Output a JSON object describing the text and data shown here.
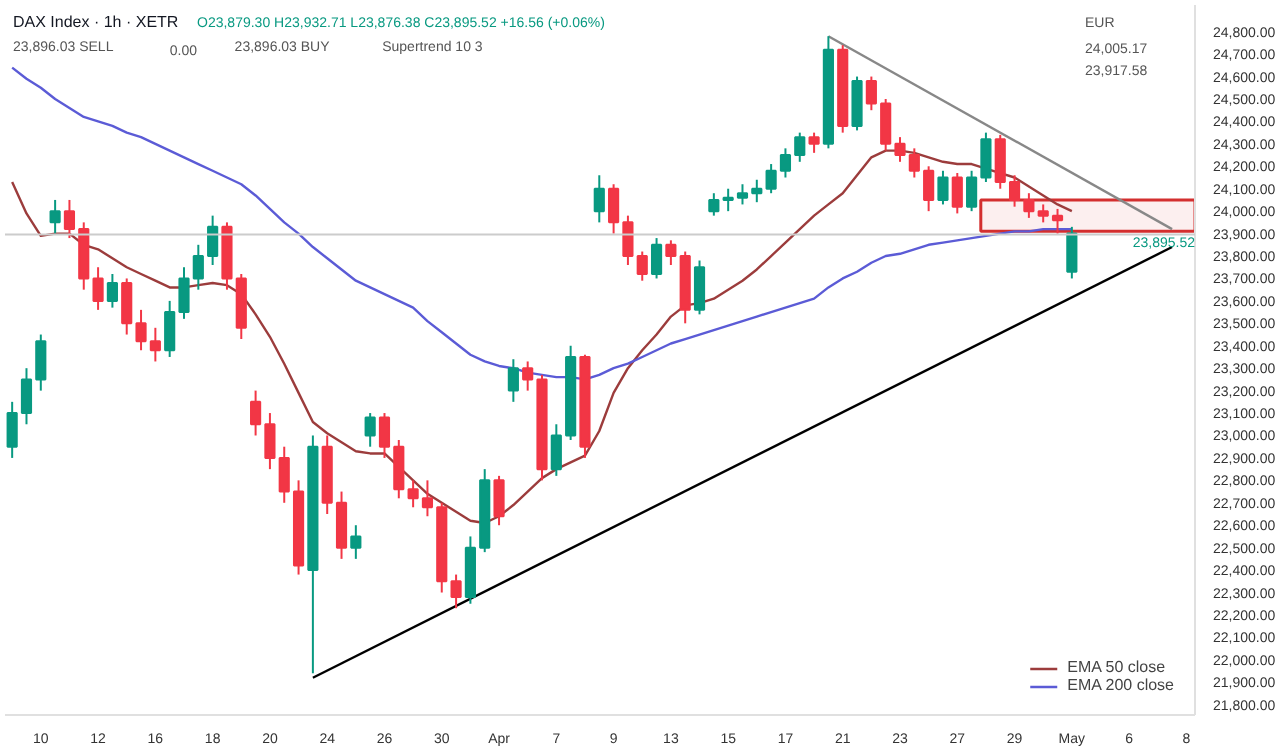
{
  "chart_data": {
    "type": "candlestick",
    "title": "DAX Index · 1h · XETR",
    "subtitle": "O23,879.30 H23,932.71 L23,876.38 C23,895.52 +16.56 (+0.06%)",
    "annotations": [
      "23,896.03 SELL",
      "0.00",
      "23,896.03 BUY",
      "Supertrend 10 3",
      "EUR",
      "24,005.17",
      "23,917.58"
    ],
    "categories": [
      null,
      null,
      "10",
      null,
      null,
      null,
      "12",
      null,
      null,
      null,
      "16",
      null,
      null,
      null,
      "18",
      null,
      null,
      null,
      "20",
      null,
      null,
      null,
      "24",
      null,
      null,
      null,
      "26",
      null,
      null,
      null,
      "30",
      null,
      null,
      null,
      "Apr",
      null,
      null,
      null,
      "7",
      null,
      null,
      null,
      "9",
      null,
      null,
      null,
      "13",
      null,
      null,
      null,
      "15",
      null,
      null,
      null,
      "17",
      null,
      null,
      null,
      "21",
      null,
      null,
      null,
      "23",
      null,
      null,
      null,
      "27",
      null,
      null,
      null,
      "29",
      null,
      null,
      null,
      "May",
      null,
      null,
      null,
      "6",
      null,
      null,
      null,
      "8",
      null,
      null
    ],
    "ohlc": [
      [
        22950,
        23150,
        22900,
        23100
      ],
      [
        23100,
        23300,
        23050,
        23250
      ],
      [
        23250,
        23450,
        23200,
        23420
      ],
      [
        23950,
        24050,
        23900,
        24000
      ],
      [
        24000,
        24050,
        23880,
        23920
      ],
      [
        23920,
        23950,
        23650,
        23700
      ],
      [
        23700,
        23750,
        23560,
        23600
      ],
      [
        23600,
        23720,
        23570,
        23680
      ],
      [
        23680,
        23700,
        23450,
        23500
      ],
      [
        23500,
        23560,
        23380,
        23420
      ],
      [
        23420,
        23480,
        23330,
        23380
      ],
      [
        23380,
        23600,
        23350,
        23550
      ],
      [
        23550,
        23750,
        23520,
        23700
      ],
      [
        23700,
        23850,
        23650,
        23800
      ],
      [
        23800,
        23980,
        23760,
        23930
      ],
      [
        23930,
        23950,
        23650,
        23700
      ],
      [
        23700,
        23720,
        23430,
        23480
      ],
      [
        23150,
        23200,
        23000,
        23050
      ],
      [
        23050,
        23100,
        22850,
        22900
      ],
      [
        22900,
        22950,
        22700,
        22750
      ],
      [
        22750,
        22800,
        22380,
        22420
      ],
      [
        22400,
        23000,
        21940,
        22950
      ],
      [
        22950,
        23000,
        22650,
        22700
      ],
      [
        22700,
        22750,
        22450,
        22500
      ],
      [
        22500,
        22600,
        22450,
        22550
      ],
      [
        23000,
        23100,
        22950,
        23080
      ],
      [
        23080,
        23100,
        22900,
        22950
      ],
      [
        22950,
        22980,
        22720,
        22760
      ],
      [
        22760,
        22800,
        22680,
        22720
      ],
      [
        22720,
        22800,
        22640,
        22680
      ],
      [
        22680,
        22700,
        22300,
        22350
      ],
      [
        22350,
        22380,
        22230,
        22280
      ],
      [
        22280,
        22550,
        22250,
        22500
      ],
      [
        22500,
        22850,
        22480,
        22800
      ],
      [
        22800,
        22820,
        22600,
        22640
      ],
      [
        23200,
        23340,
        23150,
        23300
      ],
      [
        23300,
        23330,
        23200,
        23250
      ],
      [
        23250,
        23270,
        22800,
        22850
      ],
      [
        22850,
        23050,
        22820,
        23000
      ],
      [
        23000,
        23400,
        22980,
        23350
      ],
      [
        23350,
        23360,
        22900,
        22950
      ],
      [
        24000,
        24160,
        23950,
        24100
      ],
      [
        24100,
        24120,
        23900,
        23950
      ],
      [
        23950,
        23980,
        23760,
        23800
      ],
      [
        23800,
        23820,
        23690,
        23720
      ],
      [
        23720,
        23880,
        23700,
        23850
      ],
      [
        23850,
        23870,
        23760,
        23800
      ],
      [
        23800,
        23820,
        23500,
        23560
      ],
      [
        23560,
        23780,
        23540,
        23750
      ],
      [
        24000,
        24080,
        23980,
        24050
      ],
      [
        24050,
        24100,
        24000,
        24060
      ],
      [
        24060,
        24120,
        24030,
        24080
      ],
      [
        24080,
        24140,
        24040,
        24100
      ],
      [
        24100,
        24210,
        24080,
        24180
      ],
      [
        24180,
        24280,
        24150,
        24250
      ],
      [
        24250,
        24350,
        24220,
        24330
      ],
      [
        24330,
        24350,
        24260,
        24300
      ],
      [
        24300,
        24780,
        24280,
        24720
      ],
      [
        24720,
        24740,
        24350,
        24380
      ],
      [
        24380,
        24600,
        24360,
        24580
      ],
      [
        24580,
        24600,
        24450,
        24480
      ],
      [
        24480,
        24500,
        24270,
        24300
      ],
      [
        24300,
        24330,
        24220,
        24250
      ],
      [
        24250,
        24280,
        24150,
        24180
      ],
      [
        24180,
        24200,
        24000,
        24050
      ],
      [
        24050,
        24180,
        24030,
        24150
      ],
      [
        24150,
        24170,
        23990,
        24020
      ],
      [
        24020,
        24180,
        24000,
        24150
      ],
      [
        24150,
        24350,
        24130,
        24320
      ],
      [
        24320,
        24340,
        24100,
        24130
      ],
      [
        24130,
        24160,
        24020,
        24050
      ],
      [
        24050,
        24080,
        23970,
        24000
      ],
      [
        24000,
        24030,
        23950,
        23980
      ],
      [
        23980,
        24010,
        23900,
        23960
      ],
      [
        23730,
        23930,
        23700,
        23900
      ],
      null,
      null,
      null,
      null,
      null,
      null,
      null,
      null,
      null,
      null
    ],
    "colors": [
      "#089981",
      "#089981",
      "#089981",
      "#089981",
      "#f23645",
      "#f23645",
      "#f23645",
      "#089981",
      "#f23645",
      "#f23645",
      "#f23645",
      "#089981",
      "#089981",
      "#089981",
      "#089981",
      "#f23645",
      "#f23645",
      "#f23645",
      "#f23645",
      "#f23645",
      "#f23645",
      "#089981",
      "#f23645",
      "#f23645",
      "#089981",
      "#089981",
      "#f23645",
      "#f23645",
      "#f23645",
      "#f23645",
      "#f23645",
      "#f23645",
      "#089981",
      "#089981",
      "#f23645",
      "#089981",
      "#f23645",
      "#f23645",
      "#089981",
      "#089981",
      "#f23645",
      "#089981",
      "#f23645",
      "#f23645",
      "#f23645",
      "#089981",
      "#f23645",
      "#f23645",
      "#089981",
      "#089981",
      "#089981",
      "#089981",
      "#089981",
      "#089981",
      "#089981",
      "#089981",
      "#f23645",
      "#089981",
      "#f23645",
      "#089981",
      "#f23645",
      "#f23645",
      "#f23645",
      "#f23645",
      "#f23645",
      "#089981",
      "#f23645",
      "#089981",
      "#089981",
      "#f23645",
      "#f23645",
      "#f23645",
      "#f23645",
      "#f23645",
      "#089981",
      null,
      null,
      null,
      null,
      null,
      null,
      null,
      null,
      null,
      null
    ],
    "series": [
      {
        "name": "EMA 50 close",
        "type": "line",
        "color": "#9c3c3c",
        "values": [
          24130,
          23990,
          23890,
          23900,
          23900,
          23850,
          23830,
          23790,
          23750,
          23720,
          23690,
          23660,
          23660,
          23670,
          23680,
          23670,
          23630,
          23540,
          23440,
          23320,
          23190,
          23060,
          23010,
          22970,
          22930,
          22920,
          22920,
          22860,
          22800,
          22740,
          22700,
          22660,
          22620,
          22610,
          22640,
          22690,
          22750,
          22810,
          22850,
          22880,
          22910,
          23020,
          23190,
          23300,
          23380,
          23450,
          23530,
          23580,
          23590,
          23610,
          23650,
          23690,
          23740,
          23800,
          23860,
          23920,
          23980,
          24030,
          24080,
          24160,
          24240,
          24270,
          24270,
          24260,
          24240,
          24220,
          24210,
          24210,
          24190,
          24170,
          24150,
          24110,
          24070,
          24030,
          24000,
          null,
          null,
          null,
          null,
          null,
          null,
          null,
          null,
          null,
          null
        ]
      },
      {
        "name": "EMA 200 close",
        "type": "line",
        "color": "#5b5bd6",
        "values": [
          24640,
          24590,
          24550,
          24500,
          24460,
          24420,
          24400,
          24380,
          24350,
          24330,
          24300,
          24270,
          24240,
          24210,
          24180,
          24150,
          24120,
          24070,
          24010,
          23950,
          23900,
          23840,
          23790,
          23740,
          23690,
          23660,
          23630,
          23600,
          23570,
          23510,
          23460,
          23410,
          23360,
          23330,
          23310,
          23300,
          23280,
          23270,
          23260,
          23260,
          23250,
          23270,
          23300,
          23320,
          23350,
          23380,
          23410,
          23430,
          23450,
          23470,
          23490,
          23510,
          23530,
          23550,
          23570,
          23590,
          23610,
          23660,
          23700,
          23730,
          23770,
          23800,
          23810,
          23830,
          23850,
          23860,
          23870,
          23880,
          23890,
          23900,
          23910,
          23910,
          23920,
          23920,
          23920,
          null,
          null,
          null,
          null,
          null,
          null,
          null,
          null,
          null,
          null
        ]
      },
      {
        "type": "line",
        "color": "#000000",
        "values": [
          null,
          null,
          null,
          null,
          null,
          null,
          null,
          null,
          null,
          null,
          null,
          null,
          null,
          null,
          null,
          null,
          null,
          null,
          null,
          null,
          null,
          21920,
          null,
          null,
          null,
          null,
          null,
          null,
          null,
          null,
          null,
          null,
          null,
          null,
          null,
          null,
          null,
          null,
          null,
          null,
          null,
          null,
          null,
          null,
          null,
          null,
          null,
          null,
          null,
          null,
          null,
          null,
          null,
          null,
          null,
          null,
          null,
          null,
          null,
          null,
          null,
          null,
          null,
          null,
          null,
          null,
          null,
          null,
          null,
          null,
          null,
          null,
          null,
          null,
          null,
          null,
          null,
          null,
          null,
          null,
          null,
          23840,
          null,
          null,
          null
        ]
      },
      {
        "type": "line",
        "color": "#888888",
        "values": [
          null,
          null,
          null,
          null,
          null,
          null,
          null,
          null,
          null,
          null,
          null,
          null,
          null,
          null,
          null,
          null,
          null,
          null,
          null,
          null,
          null,
          null,
          null,
          null,
          null,
          null,
          null,
          null,
          null,
          null,
          null,
          null,
          null,
          null,
          null,
          null,
          null,
          null,
          null,
          null,
          null,
          null,
          null,
          null,
          null,
          null,
          null,
          null,
          null,
          null,
          null,
          null,
          null,
          null,
          null,
          null,
          null,
          24780,
          null,
          null,
          null,
          null,
          null,
          null,
          null,
          null,
          null,
          null,
          null,
          null,
          null,
          null,
          null,
          null,
          null,
          null,
          null,
          null,
          null,
          null,
          null,
          23920,
          null,
          null,
          null
        ]
      }
    ],
    "ref_lines": [
      {
        "axis": "y",
        "value": 23895.52,
        "label": "23,895.52",
        "color": "#cccccc"
      }
    ],
    "bands": [
      {
        "axis": "y",
        "from": 23910,
        "to": 24050,
        "color": "#d32f2f"
      }
    ],
    "ylim": [
      21754,
      24919
    ],
    "yticks": [
      {
        "value": 21800,
        "label": "21,800.00"
      },
      {
        "value": 21900,
        "label": "21,900.00"
      },
      {
        "value": 22000,
        "label": "22,000.00"
      },
      {
        "value": 22100,
        "label": "22,100.00"
      },
      {
        "value": 22200,
        "label": "22,200.00"
      },
      {
        "value": 22300,
        "label": "22,300.00"
      },
      {
        "value": 22400,
        "label": "22,400.00"
      },
      {
        "value": 22500,
        "label": "22,500.00"
      },
      {
        "value": 22600,
        "label": "22,600.00"
      },
      {
        "value": 22700,
        "label": "22,700.00"
      },
      {
        "value": 22800,
        "label": "22,800.00"
      },
      {
        "value": 22900,
        "label": "22,900.00"
      },
      {
        "value": 23000,
        "label": "23,000.00"
      },
      {
        "value": 23100,
        "label": "23,100.00"
      },
      {
        "value": 23200,
        "label": "23,200.00"
      },
      {
        "value": 23300,
        "label": "23,300.00"
      },
      {
        "value": 23400,
        "label": "23,400.00"
      },
      {
        "value": 23500,
        "label": "23,500.00"
      },
      {
        "value": 23600,
        "label": "23,600.00"
      },
      {
        "value": 23700,
        "label": "23,700.00"
      },
      {
        "value": 23800,
        "label": "23,800.00"
      },
      {
        "value": 23900,
        "label": "23,900.00"
      },
      {
        "value": 24000,
        "label": "24,000.00"
      },
      {
        "value": 24100,
        "label": "24,100.00"
      },
      {
        "value": 24200,
        "label": "24,200.00"
      },
      {
        "value": 24300,
        "label": "24,300.00"
      },
      {
        "value": 24400,
        "label": "24,400.00"
      },
      {
        "value": 24500,
        "label": "24,500.00"
      },
      {
        "value": 24600,
        "label": "24,600.00"
      },
      {
        "value": 24700,
        "label": "24,700.00"
      },
      {
        "value": 24800,
        "label": "24,800.00"
      }
    ],
    "legend": "bottom right"
  }
}
